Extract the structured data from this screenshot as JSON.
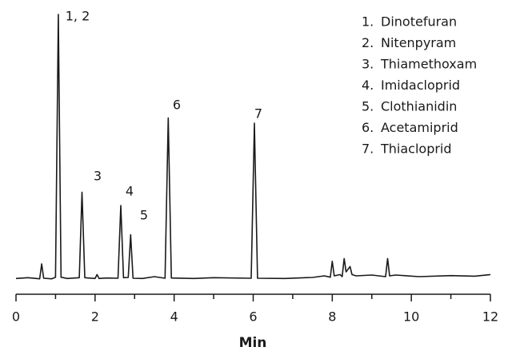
{
  "chart_data": {
    "type": "line",
    "x_label": "Min",
    "xlim": [
      0,
      12
    ],
    "xticks": [
      0,
      2,
      4,
      6,
      8,
      10,
      12
    ],
    "xminorticks": [
      1,
      3,
      5,
      7,
      9,
      11
    ],
    "ylim": [
      0,
      100
    ],
    "x": [
      0,
      0.3,
      0.6,
      0.65,
      0.7,
      0.9,
      1.0,
      1.07,
      1.14,
      1.3,
      1.6,
      1.67,
      1.74,
      2.0,
      2.05,
      2.1,
      2.3,
      2.58,
      2.65,
      2.72,
      2.84,
      2.9,
      2.96,
      3.2,
      3.5,
      3.77,
      3.85,
      3.93,
      4.5,
      5.0,
      5.95,
      6.03,
      6.11,
      6.8,
      7.5,
      7.8,
      7.95,
      8.0,
      8.05,
      8.2,
      8.25,
      8.3,
      8.35,
      8.45,
      8.5,
      8.6,
      9.0,
      9.35,
      9.4,
      9.45,
      9.6,
      10.2,
      11.0,
      11.6,
      12
    ],
    "series": [
      {
        "color": "#1a1a1a",
        "values": [
          0.5,
          0.8,
          0.4,
          6,
          0.6,
          0.4,
          1,
          100,
          1,
          0.5,
          0.8,
          33,
          0.8,
          0.5,
          2,
          0.5,
          0.7,
          0.6,
          28,
          0.8,
          0.9,
          17,
          0.6,
          0.5,
          1.2,
          0.6,
          61,
          0.7,
          0.5,
          0.8,
          0.6,
          59,
          0.6,
          0.5,
          0.9,
          1.5,
          1,
          7,
          1.5,
          2,
          1.2,
          8,
          3,
          5,
          2,
          1.5,
          1.8,
          1.2,
          8,
          1.5,
          1.8,
          1.2,
          1.6,
          1.4,
          2
        ]
      }
    ],
    "annotations": [
      "1, 2",
      "3",
      "4",
      "5",
      "6",
      "7"
    ],
    "legend_items": [
      {
        "number": "1.",
        "name": "Dinotefuran"
      },
      {
        "number": "2.",
        "name": "Nitenpyram"
      },
      {
        "number": "3.",
        "name": "Thiamethoxam"
      },
      {
        "number": "4.",
        "name": "Imidacloprid"
      },
      {
        "number": "5.",
        "name": "Clothianidin"
      },
      {
        "number": "6.",
        "name": "Acetamiprid"
      },
      {
        "number": "7.",
        "name": "Thiacloprid"
      }
    ]
  }
}
